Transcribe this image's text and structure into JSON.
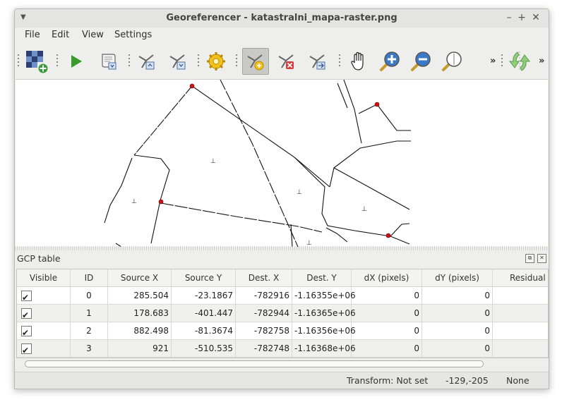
{
  "window": {
    "title": "Georeferencer - katastralni_mapa-raster.png"
  },
  "menubar": {
    "items": [
      "File",
      "Edit",
      "View",
      "Settings"
    ]
  },
  "toolbar": {
    "overflow_label": "»"
  },
  "gcp_table": {
    "title": "GCP table",
    "columns": [
      "Visible",
      "ID",
      "Source X",
      "Source Y",
      "Dest. X",
      "Dest. Y",
      "dX (pixels)",
      "dY (pixels)",
      "Residual ("
    ],
    "rows": [
      {
        "visible": true,
        "id": "0",
        "source_x": "285.504",
        "source_y": "-23.1867",
        "dest_x": "-782916",
        "dest_y": "-1.16355e+06",
        "dx": "0",
        "dy": "0",
        "residual": ""
      },
      {
        "visible": true,
        "id": "1",
        "source_x": "178.683",
        "source_y": "-401.447",
        "dest_x": "-782944",
        "dest_y": "-1.16365e+06",
        "dx": "0",
        "dy": "0",
        "residual": ""
      },
      {
        "visible": true,
        "id": "2",
        "source_x": "882.498",
        "source_y": "-81.3674",
        "dest_x": "-782758",
        "dest_y": "-1.16356e+06",
        "dx": "0",
        "dy": "0",
        "residual": ""
      },
      {
        "visible": true,
        "id": "3",
        "source_x": "921",
        "source_y": "-510.535",
        "dest_x": "-782748",
        "dest_y": "-1.16368e+06",
        "dx": "0",
        "dy": "0",
        "residual": ""
      }
    ]
  },
  "statusbar": {
    "transform": "Transform: Not set",
    "coords": "-129,-205",
    "crs": "None"
  },
  "colors": {
    "gcp_point": "#cc1111",
    "play": "#3a9a2a",
    "zoom_in": "#3b78c8"
  }
}
